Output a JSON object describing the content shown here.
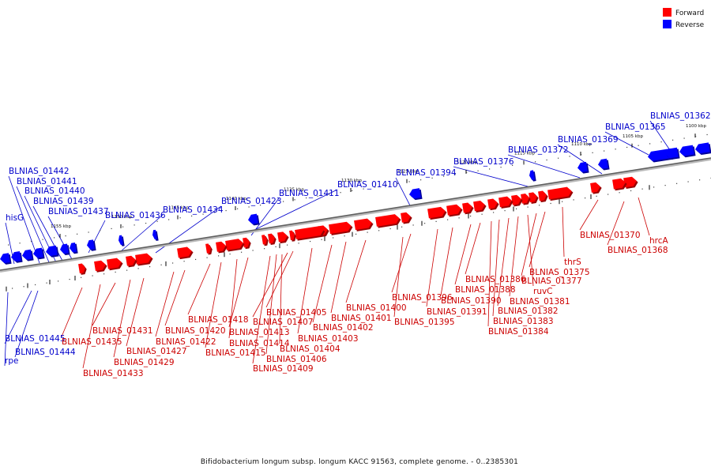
{
  "legend": {
    "forward_label": "Forward",
    "reverse_label": "Reverse",
    "forward_color": "#ff0000",
    "reverse_color": "#0000ff"
  },
  "caption": "Bifidobacterium longum subsp. longum KACC 91563, complete genome. - 0..2385301",
  "ticks": [
    "1100 kbp",
    "1105 kbp",
    "1110 kbp",
    "1115 kbp",
    "1120 kbp",
    "1125 kbp",
    "1130 kbp",
    "1135 kbp",
    "1140 kbp",
    "1145 kbp",
    "1150 kbp",
    "1155 kbp"
  ],
  "reverse_labels": [
    "BLNIAS_01362",
    "BLNIAS_01365",
    "BLNIAS_01369",
    "BLNIAS_01372",
    "BLNIAS_01376",
    "BLNIAS_01394",
    "BLNIAS_01410",
    "BLNIAS_01411",
    "BLNIAS_01423",
    "BLNIAS_01434",
    "BLNIAS_01436",
    "BLNIAS_01437",
    "BLNIAS_01439",
    "BLNIAS_01440",
    "BLNIAS_01441",
    "BLNIAS_01442",
    "hisG",
    "BLNIAS_01445",
    "BLNIAS_01444",
    "rpe"
  ],
  "forward_labels": [
    "BLNIAS_01370",
    "hrcA",
    "BLNIAS_01368",
    "thrS",
    "BLNIAS_01375",
    "BLNIAS_01377",
    "ruvC",
    "BLNIAS_01381",
    "BLNIAS_01382",
    "BLNIAS_01383",
    "BLNIAS_01384",
    "BLNIAS_01386",
    "BLNIAS_01388",
    "BLNIAS_01390",
    "BLNIAS_01391",
    "BLNIAS_01396",
    "BLNIAS_01395",
    "BLNIAS_01400",
    "BLNIAS_01401",
    "BLNIAS_01402",
    "BLNIAS_01403",
    "BLNIAS_01405",
    "BLNIAS_01407",
    "BLNIAS_01404",
    "BLNIAS_01406",
    "BLNIAS_01409",
    "BLNIAS_01413",
    "BLNIAS_01414",
    "BLNIAS_01415",
    "BLNIAS_01418",
    "BLNIAS_01420",
    "BLNIAS_01422",
    "BLNIAS_01427",
    "BLNIAS_01429",
    "BLNIAS_01431",
    "BLNIAS_01435",
    "BLNIAS_01433"
  ]
}
